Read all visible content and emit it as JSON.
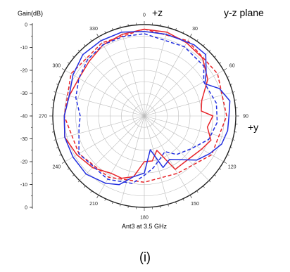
{
  "chart_data": {
    "type": "polar",
    "title": "Ant3 at 3.5 GHz",
    "plane_label": "y-z plane",
    "axis_label": "Gain(dB)",
    "pos_z_label": "+z",
    "pos_y_label": "+y",
    "caption": "(i)",
    "radial_range": [
      -40,
      0
    ],
    "radial_ticks_upper": [
      "0",
      "-10",
      "-20",
      "-30",
      "-40"
    ],
    "radial_ticks_lower": [
      "-30",
      "-20",
      "-10",
      "0"
    ],
    "radial_ticks_lower_values": [
      -30,
      -20,
      -10,
      0
    ],
    "radial_ticks_upper_values": [
      0,
      -10,
      -20,
      -30,
      -40
    ],
    "angle_labels": [
      "0",
      "30",
      "60",
      "90",
      "120",
      "150",
      "180",
      "210",
      "240",
      "270",
      "300",
      "330"
    ],
    "angle_label_values": [
      0,
      30,
      60,
      90,
      120,
      150,
      180,
      210,
      240,
      270,
      300,
      330
    ],
    "angle_grid_step_deg": 15,
    "radial_grid": [
      -35,
      -30,
      -25,
      -20,
      -15,
      -10,
      -5,
      0
    ],
    "series": [
      {
        "color": "#e8252a",
        "dash": false,
        "points": [
          [
            0,
            -2
          ],
          [
            15,
            -2
          ],
          [
            30,
            -3
          ],
          [
            45,
            -4
          ],
          [
            60,
            -8
          ],
          [
            75,
            -14
          ],
          [
            85,
            -15
          ],
          [
            90,
            -10
          ],
          [
            100,
            -12
          ],
          [
            110,
            -9
          ],
          [
            120,
            -11
          ],
          [
            135,
            -13
          ],
          [
            150,
            -13
          ],
          [
            160,
            -24
          ],
          [
            170,
            -20
          ],
          [
            180,
            -20
          ],
          [
            190,
            -13
          ],
          [
            200,
            -11
          ],
          [
            210,
            -11
          ],
          [
            225,
            -8
          ],
          [
            240,
            -6
          ],
          [
            255,
            -4
          ],
          [
            270,
            -5
          ],
          [
            285,
            -6
          ],
          [
            300,
            -7
          ],
          [
            315,
            -6
          ],
          [
            330,
            -4
          ],
          [
            345,
            -3
          ],
          [
            360,
            -2
          ]
        ]
      },
      {
        "color": "#e8252a",
        "dash": true,
        "points": [
          [
            0,
            -2
          ],
          [
            30,
            -2
          ],
          [
            60,
            -3
          ],
          [
            90,
            -4
          ],
          [
            120,
            -6
          ],
          [
            150,
            -11
          ],
          [
            180,
            -11
          ],
          [
            210,
            -9
          ],
          [
            240,
            -7
          ],
          [
            270,
            -5
          ],
          [
            300,
            -3
          ],
          [
            330,
            -3
          ],
          [
            360,
            -2
          ]
        ]
      },
      {
        "color": "#2330e0",
        "dash": false,
        "points": [
          [
            0,
            -3
          ],
          [
            15,
            -3
          ],
          [
            25,
            -3
          ],
          [
            35,
            -2
          ],
          [
            45,
            -2
          ],
          [
            55,
            -7
          ],
          [
            62,
            -10
          ],
          [
            70,
            -5
          ],
          [
            80,
            -2
          ],
          [
            90,
            -3
          ],
          [
            100,
            -3
          ],
          [
            110,
            -4
          ],
          [
            120,
            -7
          ],
          [
            130,
            -10
          ],
          [
            140,
            -15
          ],
          [
            150,
            -18
          ],
          [
            160,
            -16
          ],
          [
            170,
            -25
          ],
          [
            180,
            -15
          ],
          [
            190,
            -13
          ],
          [
            200,
            -8
          ],
          [
            210,
            -6
          ],
          [
            225,
            -4
          ],
          [
            240,
            -4
          ],
          [
            255,
            -4
          ],
          [
            270,
            -5
          ],
          [
            285,
            -6
          ],
          [
            300,
            -4
          ],
          [
            315,
            -2
          ],
          [
            330,
            -2
          ],
          [
            345,
            -2
          ],
          [
            360,
            -3
          ]
        ]
      },
      {
        "color": "#2330e0",
        "dash": true,
        "points": [
          [
            0,
            -4
          ],
          [
            30,
            -5
          ],
          [
            50,
            -6
          ],
          [
            60,
            -10
          ],
          [
            80,
            -8
          ],
          [
            95,
            -8
          ],
          [
            110,
            -10
          ],
          [
            125,
            -15
          ],
          [
            140,
            -18
          ],
          [
            150,
            -22
          ],
          [
            160,
            -20
          ],
          [
            170,
            -17
          ],
          [
            180,
            -14
          ],
          [
            190,
            -10
          ],
          [
            210,
            -8
          ],
          [
            240,
            -7
          ],
          [
            260,
            -11
          ],
          [
            270,
            -12
          ],
          [
            285,
            -9
          ],
          [
            300,
            -7
          ],
          [
            315,
            -5
          ],
          [
            330,
            -4
          ],
          [
            345,
            -4
          ],
          [
            360,
            -4
          ]
        ]
      }
    ]
  }
}
